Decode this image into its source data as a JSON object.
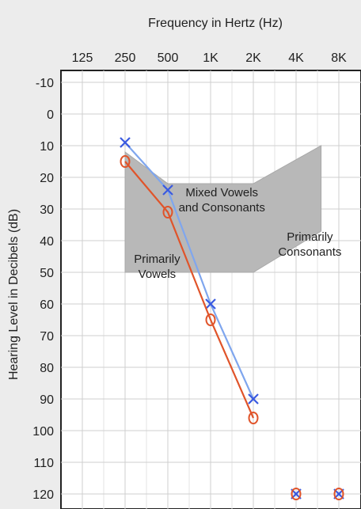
{
  "chart_data": {
    "type": "line",
    "title": "Frequency in Hertz (Hz)",
    "xlabel": "Frequency in Hertz (Hz)",
    "ylabel": "Hearing Level in Decibels (dB)",
    "x_ticks": [
      "125",
      "250",
      "500",
      "1K",
      "2K",
      "4K",
      "8K"
    ],
    "y_ticks": [
      "-10",
      "0",
      "10",
      "20",
      "30",
      "40",
      "50",
      "60",
      "70",
      "80",
      "90",
      "100",
      "110",
      "120"
    ],
    "ylim": [
      -10,
      120
    ],
    "y_inverted": true,
    "x_scale": "log2",
    "grid": true,
    "series": [
      {
        "marker": "X",
        "color": "#3a5ae0",
        "line_color": "#7fa6ee",
        "x": [
          "250",
          "500",
          "1K",
          "2K"
        ],
        "values": [
          9,
          24,
          60,
          90
        ]
      },
      {
        "marker": "O",
        "color": "#e0542a",
        "line_color": "#e0542a",
        "x": [
          "250",
          "500",
          "1K",
          "2K"
        ],
        "values": [
          15,
          31,
          65,
          96
        ]
      }
    ],
    "no_response_points": [
      {
        "x": "4K",
        "values": [
          120,
          120
        ],
        "markers": [
          "X",
          "O"
        ]
      },
      {
        "x": "8K",
        "values": [
          120,
          120
        ],
        "markers": [
          "X",
          "O"
        ]
      }
    ],
    "speech_region": {
      "color": "#b8b8b8",
      "polygon": [
        {
          "x": "250",
          "y": 12
        },
        {
          "x": "500",
          "y": 22
        },
        {
          "x": "2K",
          "y": 22
        },
        {
          "x": "6K",
          "y": 10
        },
        {
          "x": "6K",
          "y": 37
        },
        {
          "x": "2K",
          "y": 50
        },
        {
          "x": "250",
          "y": 50
        },
        {
          "x": "250",
          "y": 42
        },
        {
          "x": "250",
          "y": 12
        }
      ]
    },
    "annotations": [
      {
        "lines": [
          "Mixed Vowels",
          "and Consonants"
        ],
        "x": "1.2K",
        "y": 26
      },
      {
        "lines": [
          "Primarily",
          "Consonants"
        ],
        "x": "5K",
        "y": 40
      },
      {
        "lines": [
          "Primarily",
          "Vowels"
        ],
        "x": "420",
        "y": 47
      }
    ]
  }
}
